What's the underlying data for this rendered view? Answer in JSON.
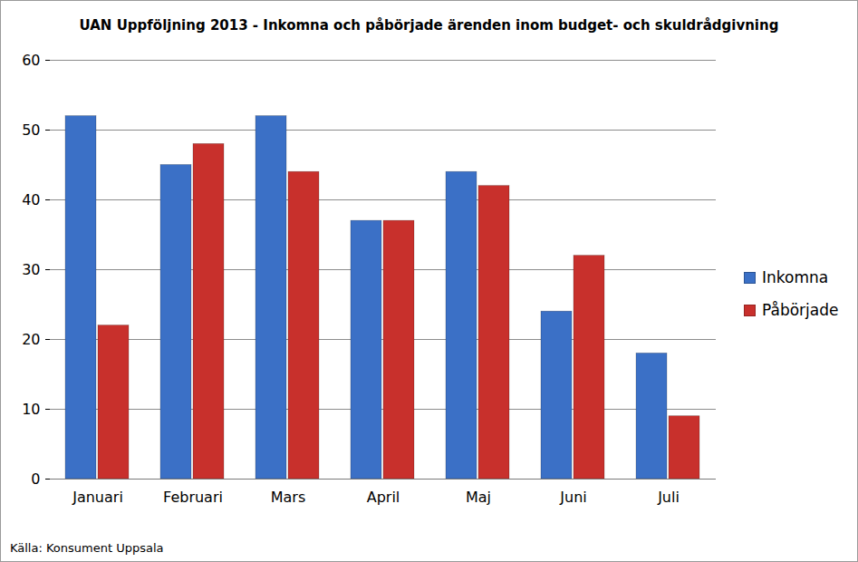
{
  "chart_data": {
    "type": "bar",
    "title": "UAN Uppföljning 2013 - Inkomna och påbörjade ärenden inom budget- och skuldrådgivning",
    "caption": "Källa: Konsument Uppsala",
    "categories": [
      "Januari",
      "Februari",
      "Mars",
      "April",
      "Maj",
      "Juni",
      "Juli"
    ],
    "series": [
      {
        "name": "Inkomna",
        "color": "#3b70c6",
        "values": [
          52,
          45,
          52,
          37,
          44,
          24,
          18
        ]
      },
      {
        "name": "Påbörjade",
        "color": "#c8302c",
        "values": [
          22,
          48,
          44,
          37,
          42,
          32,
          9
        ]
      }
    ],
    "ylim": [
      0,
      60
    ],
    "yticks": [
      0,
      10,
      20,
      30,
      40,
      50,
      60
    ],
    "grid": true,
    "legend": "right"
  }
}
